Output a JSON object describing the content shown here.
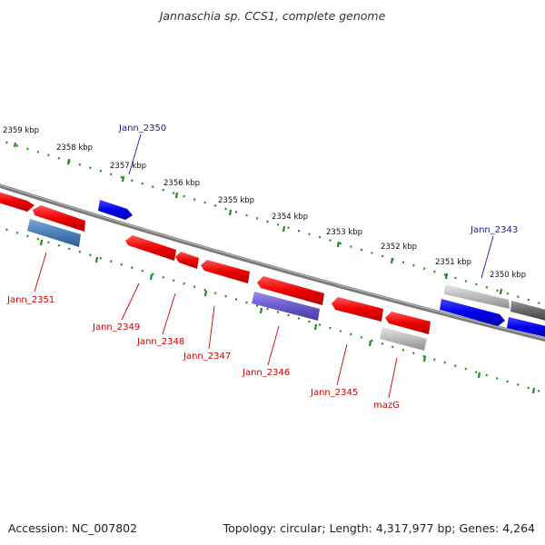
{
  "title": "Jannaschia sp. CCS1, complete genome",
  "footer": {
    "accession": "Accession: NC_007802",
    "topology": "Topology: circular; Length: 4,317,977 bp; Genes: 4,264"
  },
  "colors": {
    "forward_gene": "#0000ee",
    "reverse_gene": "#ee0000",
    "label_forward": "#1a1aa0",
    "label_reverse": "#cc0000",
    "ruler_tick": "#1f8a1f",
    "backbone": "#808080"
  },
  "ruler_labels": [
    "2359 kbp",
    "2358 kbp",
    "2357 kbp",
    "2356 kbp",
    "2355 kbp",
    "2354 kbp",
    "2353 kbp",
    "2352 kbp",
    "2351 kbp",
    "2350 kbp"
  ],
  "genes": [
    {
      "name": "Jann_2350",
      "strand": "forward",
      "color": "blue"
    },
    {
      "name": "Jann_2343",
      "strand": "forward",
      "color": "blue"
    },
    {
      "name": "Jann_2351",
      "strand": "reverse",
      "color": "steelblue"
    },
    {
      "name": "Jann_2349",
      "strand": "reverse",
      "color": "red"
    },
    {
      "name": "Jann_2348",
      "strand": "reverse",
      "color": "red"
    },
    {
      "name": "Jann_2347",
      "strand": "reverse",
      "color": "red"
    },
    {
      "name": "Jann_2346",
      "strand": "reverse",
      "color": "slateblue"
    },
    {
      "name": "Jann_2345",
      "strand": "reverse",
      "color": "red"
    },
    {
      "name": "mazG",
      "strand": "reverse",
      "color": "gray"
    }
  ]
}
